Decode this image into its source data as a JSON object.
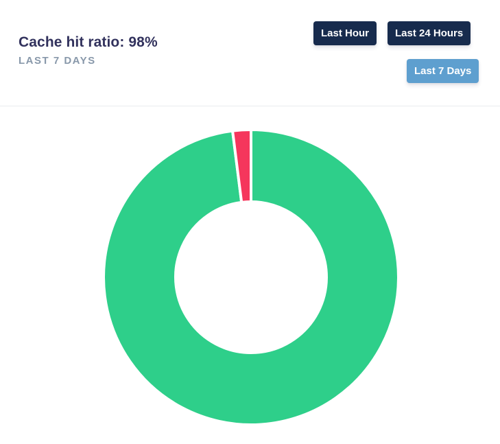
{
  "header": {
    "title": "Cache hit ratio: 98%",
    "subtitle": "LAST 7 DAYS"
  },
  "range_buttons": [
    {
      "label": "Last Hour",
      "active": false
    },
    {
      "label": "Last 24 Hours",
      "active": false
    },
    {
      "label": "Last 7 Days",
      "active": true
    }
  ],
  "colors": {
    "hit": "#2ecf8a",
    "miss": "#f5365c",
    "button_dark": "#172b4d",
    "button_active": "#5e9fcf"
  },
  "chart_data": {
    "type": "pie",
    "subtype": "doughnut",
    "title": "",
    "slices": [
      {
        "value": 98,
        "color": "#2ecf8a"
      },
      {
        "value": 2,
        "color": "#f5365c"
      }
    ],
    "legend": "none"
  }
}
